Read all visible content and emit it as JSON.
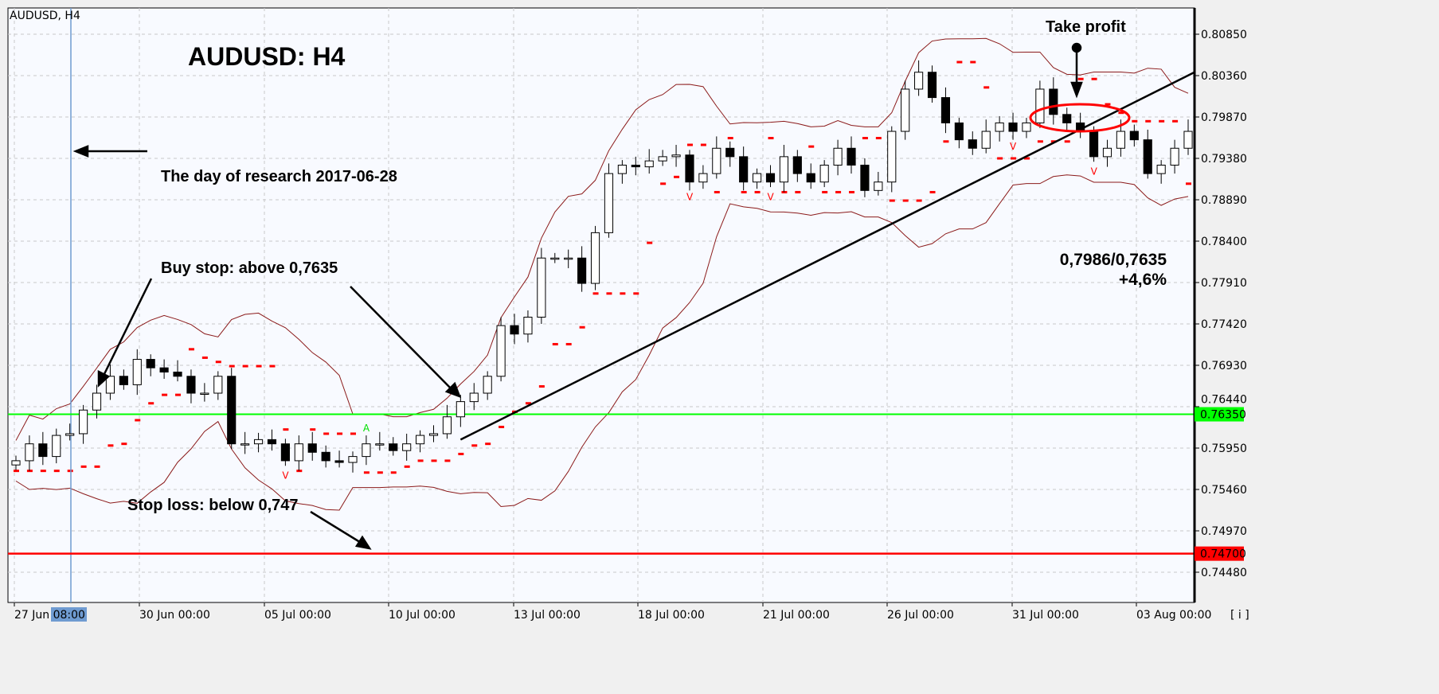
{
  "window": {
    "symbol_label": "AUDUSD, H4",
    "info_button": "[ i ]"
  },
  "colors": {
    "background": "#f8faff",
    "bull": "#ffffff",
    "bear": "#000000",
    "bands": "#8b1a1a",
    "sar": "#ff0000",
    "fractal_up": "#00e000",
    "fractal_down": "#ff0000",
    "buy_line": "#00ff00",
    "stop_line": "#ff0000",
    "trend_line": "#000000",
    "research_line": "#6f9bd1"
  },
  "annotations": {
    "title": "AUDUSD: H4",
    "research": "The day of research 2017-06-28",
    "buy_stop": "Buy stop: above 0,7635",
    "stop_loss": "Stop loss: below 0,747",
    "take_profit": "Take profit",
    "ratio": "0,7986/0,7635",
    "gain": "+4,6%"
  },
  "chart_data": {
    "type": "candlestick",
    "title": "AUDUSD: H4",
    "timeframe": "H4",
    "ylim": [
      0.744,
      0.8105
    ],
    "y_ticks": [
      "0.80850",
      "0.80360",
      "0.79870",
      "0.79380",
      "0.78890",
      "0.78400",
      "0.77910",
      "0.77420",
      "0.76930",
      "0.76440",
      "0.75950",
      "0.75460",
      "0.74970",
      "0.74480"
    ],
    "x_ticks": [
      "27 Jun 08:00",
      "30 Jun 00:00",
      "05 Jul 00:00",
      "10 Jul 00:00",
      "13 Jul 00:00",
      "18 Jul 00:00",
      "21 Jul 00:00",
      "26 Jul 00:00",
      "31 Jul 00:00",
      "03 Aug 00:00"
    ],
    "grid": true,
    "levels": {
      "buy_stop": 0.7635,
      "buy_stop_label": "0.76350",
      "stop_loss": 0.747,
      "stop_loss_label": "0.74700",
      "take_profit": 0.7986
    },
    "research_date": "2017-06-28 08:00",
    "closes": [
      0.758,
      0.76,
      0.7585,
      0.761,
      0.7612,
      0.764,
      0.766,
      0.768,
      0.767,
      0.77,
      0.769,
      0.7685,
      0.768,
      0.766,
      0.766,
      0.768,
      0.76,
      0.76,
      0.7605,
      0.76,
      0.758,
      0.76,
      0.759,
      0.758,
      0.7578,
      0.7585,
      0.76,
      0.76,
      0.7592,
      0.76,
      0.761,
      0.7612,
      0.7632,
      0.765,
      0.766,
      0.768,
      0.774,
      0.773,
      0.775,
      0.782,
      0.782,
      0.782,
      0.779,
      0.785,
      0.792,
      0.793,
      0.7928,
      0.7935,
      0.794,
      0.7942,
      0.791,
      0.792,
      0.795,
      0.794,
      0.791,
      0.792,
      0.791,
      0.794,
      0.792,
      0.791,
      0.793,
      0.795,
      0.793,
      0.79,
      0.791,
      0.797,
      0.802,
      0.804,
      0.801,
      0.798,
      0.796,
      0.795,
      0.797,
      0.798,
      0.797,
      0.798,
      0.802,
      0.799,
      0.798,
      0.797,
      0.794,
      0.795,
      0.797,
      0.796,
      0.792,
      0.793,
      0.795,
      0.797
    ],
    "trend_line": {
      "from_close_index": 33,
      "from_price": 0.7605,
      "to_price": 0.804,
      "note": ""
    }
  }
}
